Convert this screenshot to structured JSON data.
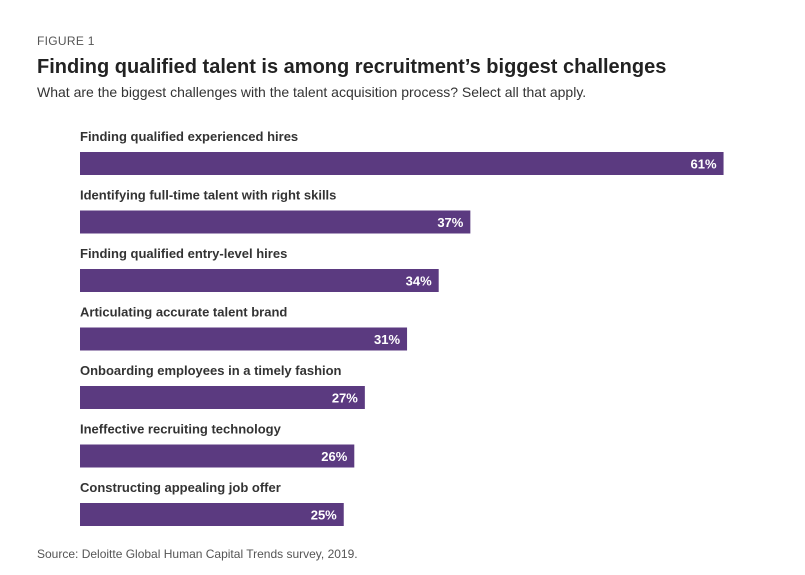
{
  "figure_label": "FIGURE 1",
  "title": "Finding qualified talent is among recruitment’s biggest challenges",
  "subtitle": "What are the biggest challenges with the talent acquisition process? Select all that apply.",
  "source": "Source: Deloitte Global Human Capital Trends survey, 2019.",
  "colors": {
    "bar": "#5b3a80",
    "bar_label": "#ffffff",
    "category_label": "#333333"
  },
  "chart_data": {
    "type": "bar",
    "orientation": "horizontal",
    "title": "Finding qualified talent is among recruitment’s biggest challenges",
    "subtitle": "What are the biggest challenges with the talent acquisition process? Select all that apply.",
    "categories": [
      "Finding qualified experienced hires",
      "Identifying full-time talent with right skills",
      "Finding qualified entry-level hires",
      "Articulating accurate talent brand",
      "Onboarding employees in a timely fashion",
      "Ineffective recruiting technology",
      "Constructing appealing job offer"
    ],
    "values": [
      61,
      37,
      34,
      31,
      27,
      26,
      25
    ],
    "value_labels": [
      "61%",
      "37%",
      "34%",
      "31%",
      "27%",
      "26%",
      "25%"
    ],
    "unit": "%",
    "xlim": [
      0,
      100
    ],
    "grid": false,
    "legend": "none"
  }
}
